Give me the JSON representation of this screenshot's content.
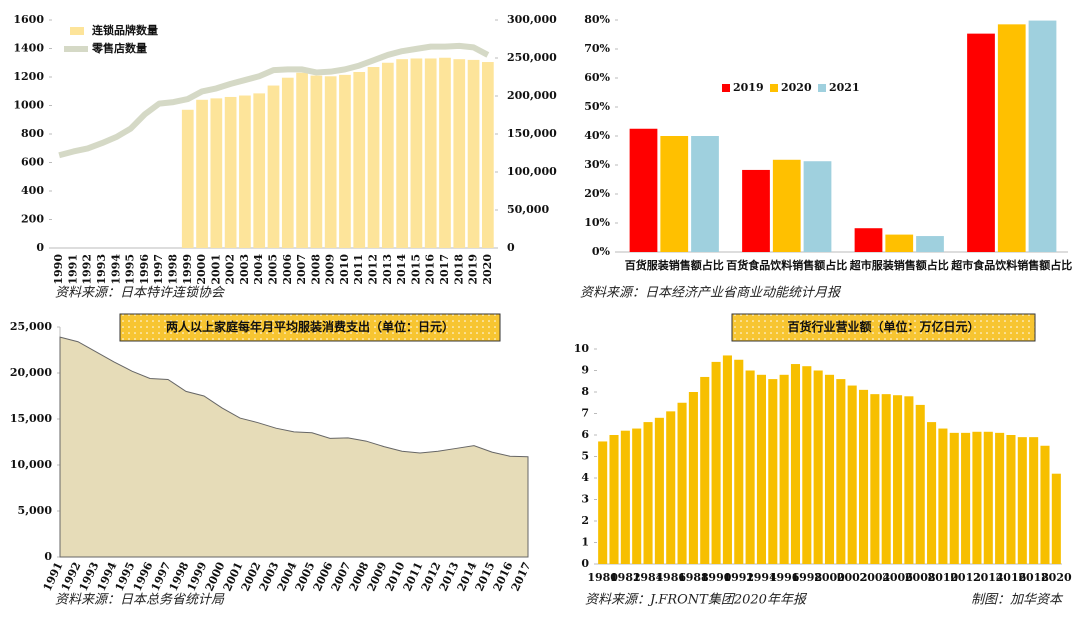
{
  "chart_data": [
    {
      "type": "bar",
      "categories": [
        "1990",
        "1991",
        "1992",
        "1993",
        "1994",
        "1995",
        "1996",
        "1997",
        "1998",
        "1999",
        "2000",
        "2001",
        "2002",
        "2003",
        "2004",
        "2005",
        "2006",
        "2007",
        "2008",
        "2009",
        "2010",
        "2011",
        "2012",
        "2013",
        "2014",
        "2015",
        "2016",
        "2017",
        "2018",
        "2019",
        "2020"
      ],
      "series": [
        {
          "name": "连锁品牌数量",
          "color": "#fde49a",
          "values": [
            null,
            null,
            null,
            null,
            null,
            null,
            null,
            null,
            null,
            970,
            1040,
            1050,
            1060,
            1070,
            1085,
            1140,
            1195,
            1230,
            1210,
            1205,
            1215,
            1235,
            1270,
            1300,
            1325,
            1330,
            1330,
            1335,
            1325,
            1320,
            1305
          ]
        },
        {
          "name": "零售店数量",
          "color": "#d5d9c6",
          "type": "line",
          "axis": "y2",
          "values": [
            122000,
            127000,
            131000,
            138000,
            146000,
            157000,
            176000,
            190000,
            192000,
            196000,
            206000,
            210000,
            216000,
            221000,
            226000,
            234000,
            235000,
            235000,
            231000,
            232000,
            235000,
            240000,
            247000,
            254000,
            259000,
            262000,
            265000,
            265000,
            266000,
            264000,
            254000
          ]
        }
      ],
      "ylim": [
        0,
        1600
      ],
      "yticks": [
        0,
        200,
        400,
        600,
        800,
        1000,
        1200,
        1400,
        1600
      ],
      "y2lim": [
        0,
        300000
      ],
      "y2ticks": [
        0,
        {
          "value": 50000,
          "label": "50,000"
        },
        {
          "value": 100000,
          "label": "100,000"
        },
        {
          "value": 150000,
          "label": "150,000"
        },
        {
          "value": 200000,
          "label": "200,000"
        },
        {
          "value": 250000,
          "label": "250,000"
        },
        {
          "value": 300000,
          "label": "300,000"
        }
      ],
      "legend": "upper left",
      "source": "资料来源：日本特许连锁协会"
    },
    {
      "type": "bar",
      "categories": [
        "百货服装销售额占比",
        "百货食品饮料销售额占比",
        "超市服装销售额占比",
        "超市食品饮料销售额占比"
      ],
      "series": [
        {
          "name": "2019",
          "color": "#ff0000",
          "values": [
            42.5,
            28.3,
            8.2,
            75.3
          ]
        },
        {
          "name": "2020",
          "color": "#ffc000",
          "values": [
            40,
            31.8,
            6,
            78.5
          ]
        },
        {
          "name": "2021",
          "color": "#9fd0de",
          "values": [
            40,
            31.3,
            5.5,
            79.8
          ]
        }
      ],
      "ylim": [
        0,
        80
      ],
      "yticks": [
        {
          "value": 0,
          "label": "0%"
        },
        {
          "value": 10,
          "label": "10%"
        },
        {
          "value": 20,
          "label": "20%"
        },
        {
          "value": 30,
          "label": "30%"
        },
        {
          "value": 40,
          "label": "40%"
        },
        {
          "value": 50,
          "label": "50%"
        },
        {
          "value": 60,
          "label": "60%"
        },
        {
          "value": 70,
          "label": "70%"
        },
        {
          "value": 80,
          "label": "80%"
        }
      ],
      "legend": "center left",
      "source": "资料来源：日本经济产业省商业动能统计月报"
    },
    {
      "type": "area",
      "title": "两人以上家庭每年月平均服装消费支出（单位：日元）",
      "categories": [
        "1991",
        "1992",
        "1993",
        "1994",
        "1995",
        "1996",
        "1997",
        "1998",
        "1999",
        "2000",
        "2001",
        "2002",
        "2003",
        "2004",
        "2005",
        "2006",
        "2007",
        "2008",
        "2009",
        "2010",
        "2011",
        "2012",
        "2013",
        "2014",
        "2015",
        "2016",
        "2017"
      ],
      "values": [
        23900,
        23400,
        22300,
        21200,
        20200,
        19400,
        19300,
        18000,
        17500,
        16200,
        15100,
        14600,
        14000,
        13600,
        13500,
        12900,
        12950,
        12600,
        12000,
        11500,
        11300,
        11500,
        11800,
        12100,
        11400,
        10950,
        10900
      ],
      "color": "#e6dcb8",
      "ylim": [
        0,
        25000
      ],
      "yticks": [
        0,
        {
          "value": 5000,
          "label": "5,000"
        },
        {
          "value": 10000,
          "label": "10,000"
        },
        {
          "value": 15000,
          "label": "15,000"
        },
        {
          "value": 20000,
          "label": "20,000"
        },
        {
          "value": 25000,
          "label": "25,000"
        }
      ],
      "source": "资料来源：日本总务省统计局"
    },
    {
      "type": "bar",
      "title": "百货行业营业额（单位：万亿日元）",
      "categories": [
        "1980",
        null,
        "1982",
        null,
        "1984",
        null,
        "1986",
        null,
        "1988",
        null,
        "1990",
        null,
        "1992",
        null,
        "1994",
        null,
        "1996",
        null,
        "1998",
        null,
        "2000",
        null,
        "2002",
        null,
        "2004",
        null,
        "2006",
        null,
        "2008",
        null,
        "2010",
        null,
        "2012",
        null,
        "2014",
        null,
        "2016",
        null,
        "2018",
        null,
        "2020"
      ],
      "values": [
        5.7,
        6.0,
        6.2,
        6.3,
        6.6,
        6.8,
        7.1,
        7.5,
        8.0,
        8.7,
        9.4,
        9.7,
        9.5,
        9.0,
        8.8,
        8.6,
        8.8,
        9.3,
        9.2,
        9.0,
        8.8,
        8.6,
        8.3,
        8.1,
        7.9,
        7.9,
        7.85,
        7.8,
        7.4,
        6.6,
        6.3,
        6.1,
        6.1,
        6.15,
        6.15,
        6.1,
        6.0,
        5.9,
        5.9,
        5.5,
        4.2
      ],
      "color": "#f7bf00",
      "ylim": [
        0,
        10
      ],
      "yticks": [
        0,
        1,
        2,
        3,
        4,
        5,
        6,
        7,
        8,
        9,
        10
      ],
      "source": "资料来源：J.FRONT集团2020年年报",
      "credit": "制图：加华资本"
    }
  ]
}
